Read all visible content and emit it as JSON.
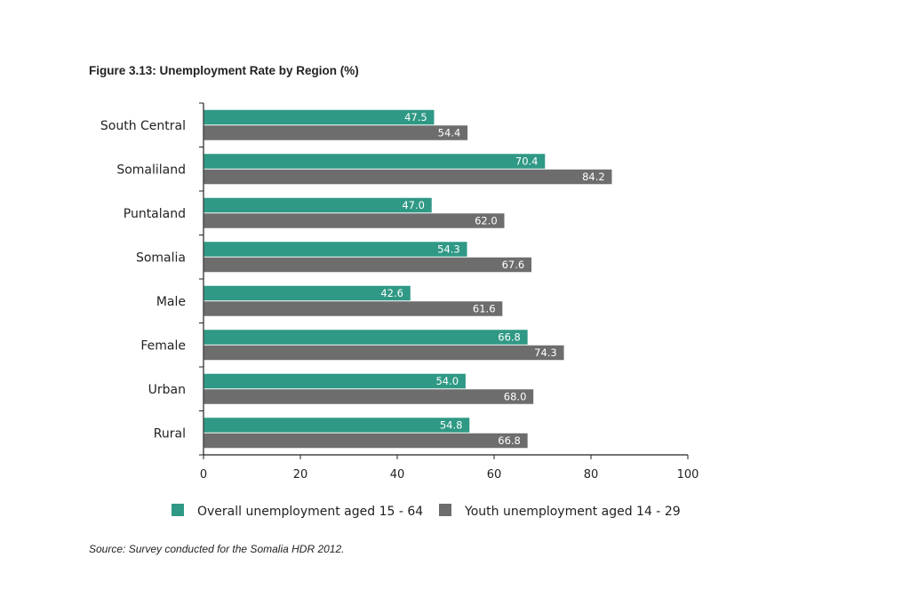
{
  "title": "Figure 3.13: Unemployment Rate by Region (%)",
  "source": "Source: Survey conducted for the Somalia HDR 2012.",
  "chart_data": {
    "type": "bar",
    "orientation": "horizontal",
    "categories": [
      "South Central",
      "Somaliland",
      "Puntaland",
      "Somalia",
      "Male",
      "Female",
      "Urban",
      "Rural"
    ],
    "series": [
      {
        "name": "Overall unemployment aged 15 - 64",
        "color": "#2f9985",
        "values": [
          47.5,
          70.4,
          47.0,
          54.3,
          42.6,
          66.8,
          54.0,
          54.8
        ],
        "labels": [
          "47.5",
          "70.4",
          "47.0",
          "54.3",
          "42.6",
          "66.8",
          "54.0",
          "54.8"
        ]
      },
      {
        "name": "Youth unemployment aged 14 - 29",
        "color": "#6e6d6d",
        "values": [
          54.4,
          84.2,
          62.0,
          67.6,
          61.6,
          74.3,
          68.0,
          66.8
        ],
        "labels": [
          "54.4",
          "84.2",
          "62.0",
          "67.6",
          "61.6",
          "74.3",
          "68.0",
          "66.8"
        ]
      }
    ],
    "xlim": [
      0,
      100
    ],
    "xticks": [
      0,
      20,
      40,
      60,
      80,
      100
    ],
    "xtick_labels": [
      "0",
      "20",
      "40",
      "60",
      "80",
      "100"
    ],
    "grid": false,
    "legend_position": "bottom"
  }
}
